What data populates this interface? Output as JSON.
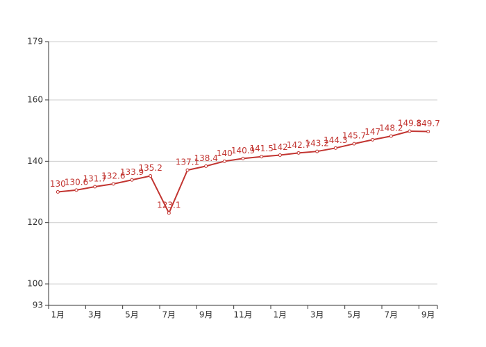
{
  "chart_data": {
    "type": "line",
    "categories": [
      "1月",
      null,
      "3月",
      null,
      "5月",
      null,
      "7月",
      null,
      "9月",
      null,
      "11月",
      null,
      "1月",
      null,
      "3月",
      null,
      "5月",
      null,
      "7月",
      null,
      "9月"
    ],
    "series": [
      {
        "color": "#c23531",
        "values": [
          130,
          130.6,
          131.7,
          132.6,
          133.9,
          135.2,
          123.1,
          137.1,
          138.4,
          140,
          140.9,
          141.5,
          142,
          142.7,
          143.2,
          144.3,
          145.7,
          147,
          148.2,
          149.8,
          149.7
        ]
      }
    ],
    "ylim": [
      93,
      179
    ],
    "yticks": [
      93,
      100,
      120,
      140,
      160,
      179
    ],
    "grid": true
  }
}
